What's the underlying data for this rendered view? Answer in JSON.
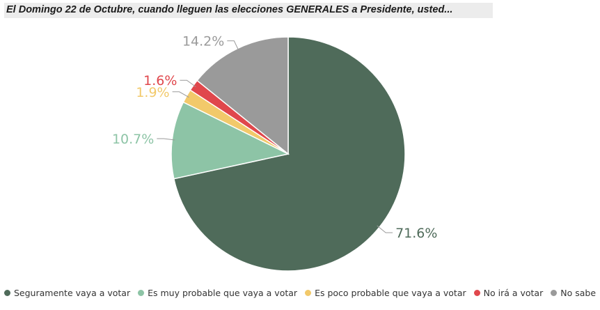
{
  "chart_data": {
    "type": "pie",
    "title": "El Domingo 22 de Octubre, cuando lleguen las elecciones GENERALES a Presidente, usted...",
    "slices": [
      {
        "label": "Seguramente vaya a votar",
        "value": 71.6,
        "value_label": "71.6%",
        "color": "#4f6b5a"
      },
      {
        "label": "Es muy probable que vaya a votar",
        "value": 10.7,
        "value_label": "10.7%",
        "color": "#8dc4a6"
      },
      {
        "label": "Es poco probable que vaya a votar",
        "value": 1.9,
        "value_label": "1.9%",
        "color": "#f2c96a"
      },
      {
        "label": "No irá a votar",
        "value": 1.6,
        "value_label": "1.6%",
        "color": "#e0474c"
      },
      {
        "label": "No sabe",
        "value": 14.2,
        "value_label": "14.2%",
        "color": "#9a9a9a"
      }
    ],
    "start_angle": "12 o'clock",
    "direction": "clockwise",
    "legend_position": "bottom"
  }
}
